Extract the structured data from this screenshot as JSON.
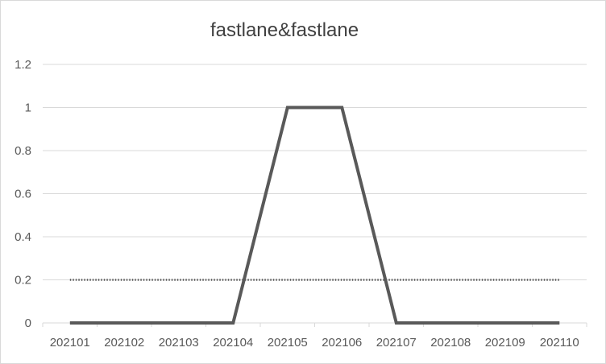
{
  "chart_data": {
    "type": "line",
    "title": "fastlane&fastlane",
    "xlabel": "",
    "ylabel": "",
    "categories": [
      "202101",
      "202102",
      "202103",
      "202104",
      "202105",
      "202106",
      "202107",
      "202108",
      "202109",
      "202110"
    ],
    "series": [
      {
        "values": [
          0,
          0,
          0,
          0,
          1,
          1,
          0,
          0,
          0,
          0
        ],
        "style": "solid",
        "color": "#595959"
      },
      {
        "values": [
          0.2,
          0.2,
          0.2,
          0.2,
          0.2,
          0.2,
          0.2,
          0.2,
          0.2,
          0.2
        ],
        "style": "dotted",
        "color": "#595959"
      }
    ],
    "ylim": [
      0,
      1.2
    ],
    "yticks": [
      "0",
      "0.2",
      "0.4",
      "0.6",
      "0.8",
      "1",
      "1.2"
    ],
    "grid": true,
    "legend": "none"
  },
  "colors": {
    "grid": "#d9d9d9",
    "axis_text": "#595959",
    "title": "#404040"
  }
}
